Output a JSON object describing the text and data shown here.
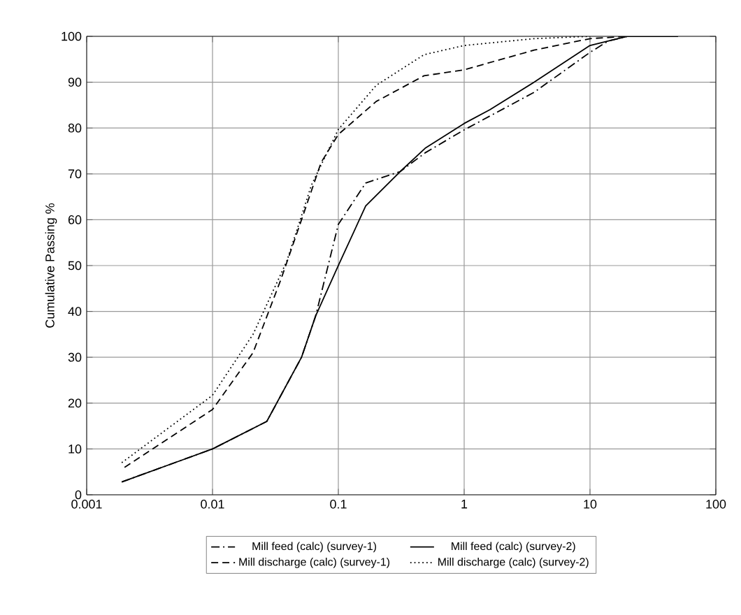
{
  "chart_data": {
    "type": "line",
    "ylabel": "Cumulative Passing %",
    "log": "x",
    "xlim": [
      0.001,
      100
    ],
    "xticks": [
      0.001,
      0.01,
      0.1,
      1,
      10,
      100
    ],
    "ylim": [
      0,
      100
    ],
    "yticks": [
      0,
      10,
      20,
      30,
      40,
      50,
      60,
      70,
      80,
      90,
      100
    ],
    "grid": true,
    "legend": "bottom",
    "marker": "none",
    "series": [
      {
        "name": "Mill feed (calc) (survey-1)",
        "color": "#000000",
        "line_style": "dashdot",
        "x": [
          0.0019,
          0.01,
          0.027,
          0.051,
          0.066,
          0.1,
          0.165,
          0.31,
          0.49,
          1,
          3.6,
          10,
          14,
          20,
          50
        ],
        "values": [
          2.8,
          10,
          16,
          30,
          39,
          59,
          68,
          70.5,
          74.6,
          79.6,
          87.8,
          96.5,
          99,
          100,
          100
        ]
      },
      {
        "name": "Mill feed (calc) (survey-2)",
        "color": "#000000",
        "line_style": "solid",
        "x": [
          0.0019,
          0.01,
          0.027,
          0.051,
          0.066,
          0.1,
          0.165,
          0.31,
          0.49,
          1,
          1.6,
          3.6,
          10,
          14,
          20,
          50
        ],
        "values": [
          2.8,
          10,
          16,
          30,
          39,
          50,
          63,
          70.5,
          75.6,
          81,
          84,
          90,
          98,
          99,
          100,
          100
        ]
      },
      {
        "name": "Mill discharge (calc) (survey-1)",
        "color": "#000000",
        "line_style": "dashed",
        "x": [
          0.002,
          0.01,
          0.021,
          0.035,
          0.051,
          0.073,
          0.1,
          0.2,
          0.48,
          1,
          3.6,
          10,
          20
        ],
        "values": [
          6,
          18.6,
          31,
          47,
          60,
          72.5,
          78.6,
          85.8,
          91.4,
          92.7,
          97,
          99.5,
          100
        ]
      },
      {
        "name": "Mill discharge (calc) (survey-2)",
        "color": "#000000",
        "line_style": "dotted",
        "x": [
          0.0019,
          0.01,
          0.021,
          0.039,
          0.061,
          0.1,
          0.2,
          0.48,
          1,
          3.6,
          10
        ],
        "values": [
          7,
          21.7,
          35,
          51,
          67.5,
          79.7,
          89.3,
          96,
          98,
          99.5,
          100
        ]
      }
    ]
  }
}
